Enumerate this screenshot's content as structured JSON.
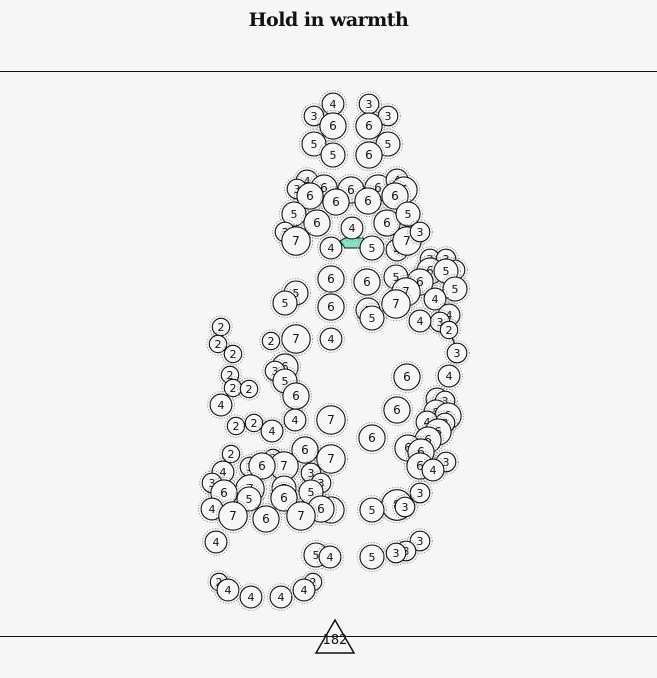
{
  "title": "Hold in warmth",
  "level_number": "182",
  "colors": {
    "background": "#f7f6f6",
    "ink": "#111111",
    "highlight": "#7fe8c0"
  },
  "circles": [
    [
      333,
      104,
      4
    ],
    [
      369,
      104,
      3
    ],
    [
      314,
      116,
      3
    ],
    [
      388,
      116,
      3
    ],
    [
      333,
      126,
      6
    ],
    [
      369,
      126,
      6
    ],
    [
      314,
      144,
      5
    ],
    [
      388,
      144,
      5
    ],
    [
      333,
      155,
      5
    ],
    [
      369,
      155,
      6
    ],
    [
      307,
      181,
      4
    ],
    [
      297,
      189,
      3
    ],
    [
      324,
      188,
      6
    ],
    [
      351,
      190,
      6
    ],
    [
      378,
      188,
      6
    ],
    [
      397,
      180,
      4
    ],
    [
      404,
      190,
      6
    ],
    [
      310,
      196,
      6
    ],
    [
      336,
      202,
      6
    ],
    [
      368,
      201,
      6
    ],
    [
      395,
      196,
      6
    ],
    [
      294,
      214,
      5
    ],
    [
      317,
      223,
      6
    ],
    [
      352,
      228,
      4
    ],
    [
      387,
      223,
      6
    ],
    [
      408,
      214,
      5
    ],
    [
      285,
      232,
      3
    ],
    [
      296,
      241,
      7
    ],
    [
      331,
      248,
      4
    ],
    [
      372,
      248,
      5
    ],
    [
      397,
      250,
      4
    ],
    [
      407,
      241,
      7
    ],
    [
      420,
      232,
      3
    ],
    [
      430,
      259,
      3
    ],
    [
      446,
      259,
      3
    ],
    [
      455,
      270,
      3
    ],
    [
      430,
      271,
      6
    ],
    [
      446,
      271,
      5
    ],
    [
      420,
      282,
      6
    ],
    [
      396,
      277,
      5
    ],
    [
      455,
      289,
      5
    ],
    [
      406,
      292,
      7
    ],
    [
      435,
      299,
      4
    ],
    [
      396,
      304,
      7
    ],
    [
      331,
      279,
      6
    ],
    [
      367,
      282,
      6
    ],
    [
      296,
      293,
      5
    ],
    [
      285,
      303,
      5
    ],
    [
      331,
      307,
      6
    ],
    [
      368,
      310,
      5
    ],
    [
      372,
      318,
      5
    ],
    [
      449,
      315,
      4
    ],
    [
      440,
      322,
      3
    ],
    [
      420,
      321,
      4
    ],
    [
      449,
      330,
      2
    ],
    [
      457,
      353,
      3
    ],
    [
      221,
      327,
      2
    ],
    [
      218,
      344,
      2
    ],
    [
      233,
      354,
      2
    ],
    [
      296,
      339,
      7
    ],
    [
      271,
      341,
      2
    ],
    [
      331,
      339,
      4
    ],
    [
      285,
      367,
      6
    ],
    [
      275,
      371,
      3
    ],
    [
      285,
      381,
      5
    ],
    [
      230,
      375,
      2
    ],
    [
      233,
      388,
      2
    ],
    [
      249,
      389,
      2
    ],
    [
      296,
      396,
      6
    ],
    [
      407,
      377,
      6
    ],
    [
      449,
      376,
      4
    ],
    [
      221,
      405,
      4
    ],
    [
      437,
      399,
      4
    ],
    [
      445,
      401,
      3
    ],
    [
      436,
      412,
      5
    ],
    [
      448,
      416,
      6
    ],
    [
      331,
      420,
      7
    ],
    [
      295,
      420,
      4
    ],
    [
      397,
      410,
      6
    ],
    [
      427,
      422,
      4
    ],
    [
      445,
      423,
      3
    ],
    [
      236,
      426,
      2
    ],
    [
      254,
      423,
      2
    ],
    [
      272,
      431,
      4
    ],
    [
      438,
      432,
      6
    ],
    [
      372,
      438,
      6
    ],
    [
      428,
      440,
      6
    ],
    [
      408,
      448,
      6
    ],
    [
      421,
      452,
      6
    ],
    [
      305,
      450,
      6
    ],
    [
      231,
      454,
      2
    ],
    [
      331,
      459,
      7
    ],
    [
      446,
      462,
      3
    ],
    [
      420,
      466,
      6
    ],
    [
      433,
      470,
      4
    ],
    [
      273,
      458,
      2
    ],
    [
      284,
      466,
      7
    ],
    [
      250,
      467,
      3
    ],
    [
      262,
      466,
      6
    ],
    [
      223,
      472,
      4
    ],
    [
      311,
      473,
      3
    ],
    [
      212,
      483,
      3
    ],
    [
      321,
      483,
      3
    ],
    [
      250,
      489,
      7
    ],
    [
      284,
      488,
      5
    ],
    [
      311,
      492,
      5
    ],
    [
      224,
      493,
      6
    ],
    [
      420,
      493,
      3
    ],
    [
      249,
      499,
      5
    ],
    [
      284,
      498,
      6
    ],
    [
      397,
      505,
      8
    ],
    [
      405,
      507,
      3
    ],
    [
      331,
      510,
      6
    ],
    [
      321,
      509,
      6
    ],
    [
      212,
      509,
      4
    ],
    [
      372,
      510,
      5
    ],
    [
      233,
      516,
      7
    ],
    [
      301,
      516,
      7
    ],
    [
      266,
      519,
      6
    ],
    [
      216,
      542,
      4
    ],
    [
      420,
      541,
      3
    ],
    [
      406,
      551,
      3
    ],
    [
      316,
      555,
      5
    ],
    [
      330,
      557,
      4
    ],
    [
      372,
      557,
      5
    ],
    [
      396,
      553,
      3
    ],
    [
      313,
      582,
      2
    ],
    [
      219,
      582,
      2
    ],
    [
      228,
      590,
      4
    ],
    [
      251,
      597,
      4
    ],
    [
      281,
      597,
      4
    ],
    [
      304,
      590,
      4
    ]
  ]
}
